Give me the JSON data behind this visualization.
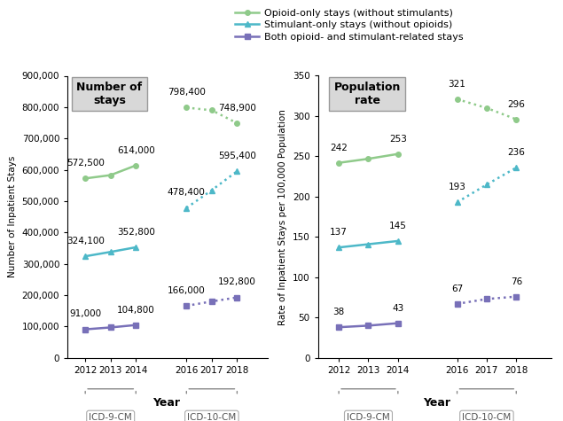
{
  "left_panel": {
    "title": "Number of\nstays",
    "icd9_years": [
      2012,
      2013,
      2014
    ],
    "icd10_years": [
      2016,
      2017,
      2018
    ],
    "opioid_icd9": [
      572500,
      583000,
      614000
    ],
    "opioid_icd10": [
      798400,
      790000,
      748900
    ],
    "stimulant_icd9": [
      324100,
      338000,
      352800
    ],
    "stimulant_icd10": [
      478400,
      535000,
      595400
    ],
    "both_icd9": [
      91000,
      97000,
      104800
    ],
    "both_icd10": [
      166000,
      180000,
      192800
    ],
    "label_opioid_icd9_first": [
      "572,500",
      "614,000"
    ],
    "label_opioid_icd10_first": [
      "798,400",
      "748,900"
    ],
    "label_stimulant_icd9_first": [
      "324,100",
      "352,800"
    ],
    "label_stimulant_icd10_first": [
      "478,400",
      "595,400"
    ],
    "label_both_icd9_first": [
      "91,000",
      "104,800"
    ],
    "label_both_icd10_first": [
      "166,000",
      "192,800"
    ],
    "ylabel": "Number of Inpatient Stays",
    "ylim": [
      0,
      900000
    ],
    "yticks": [
      0,
      100000,
      200000,
      300000,
      400000,
      500000,
      600000,
      700000,
      800000,
      900000
    ],
    "ytick_labels": [
      "0",
      "100,000",
      "200,000",
      "300,000",
      "400,000",
      "500,000",
      "600,000",
      "700,000",
      "800,000",
      "900,000"
    ]
  },
  "right_panel": {
    "title": "Population\nrate",
    "icd9_years": [
      2012,
      2013,
      2014
    ],
    "icd10_years": [
      2016,
      2017,
      2018
    ],
    "opioid_icd9": [
      242,
      247,
      253
    ],
    "opioid_icd10": [
      321,
      310,
      296
    ],
    "stimulant_icd9": [
      137,
      141,
      145
    ],
    "stimulant_icd10": [
      193,
      215,
      236
    ],
    "both_icd9": [
      38,
      40,
      43
    ],
    "both_icd10": [
      67,
      73,
      76
    ],
    "label_opioid_icd9_first": [
      "242",
      "253"
    ],
    "label_opioid_icd10_first": [
      "321",
      "296"
    ],
    "label_stimulant_icd9_first": [
      "137",
      "145"
    ],
    "label_stimulant_icd10_first": [
      "193",
      "236"
    ],
    "label_both_icd9_first": [
      "38",
      "43"
    ],
    "label_both_icd10_first": [
      "67",
      "76"
    ],
    "ylabel": "Rate of Inpatient Stays per 100,000 Population",
    "ylim": [
      0,
      350
    ],
    "yticks": [
      0,
      50,
      100,
      150,
      200,
      250,
      300,
      350
    ],
    "ytick_labels": [
      "0",
      "50",
      "100",
      "150",
      "200",
      "250",
      "300",
      "350"
    ]
  },
  "colors": {
    "opioid": "#8FCA8A",
    "stimulant": "#4DB8C8",
    "both": "#7870B8"
  },
  "legend": {
    "entries": [
      "Opioid-only stays (without stimulants)",
      "Stimulant-only stays (without opioids)",
      "Both opioid- and stimulant-related stays"
    ]
  },
  "xlabel": "Year",
  "background_color": "#ffffff"
}
